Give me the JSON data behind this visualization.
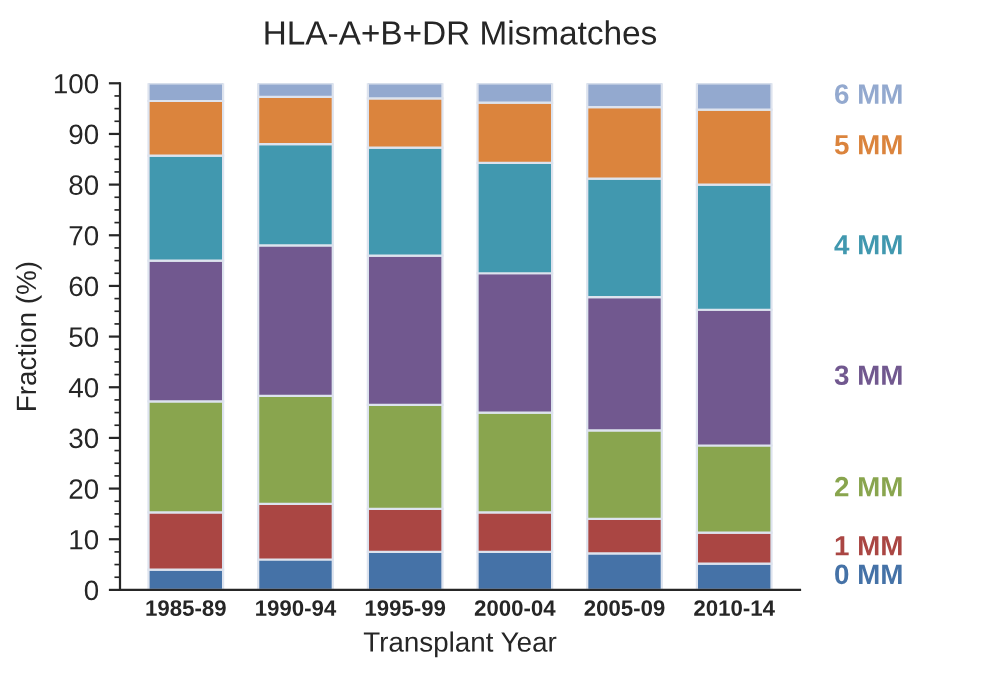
{
  "chart_data": {
    "type": "bar",
    "title": "HLA-A+B+DR Mismatches",
    "xlabel": "Transplant Year",
    "ylabel": "Fraction (%)",
    "categories": [
      "1985-89",
      "1990-94",
      "1995-99",
      "2000-04",
      "2005-09",
      "2010-14"
    ],
    "stacked": true,
    "legend": "right",
    "grid": false,
    "ylim": [
      0,
      100
    ],
    "yticks": [
      0,
      10,
      20,
      30,
      40,
      50,
      60,
      70,
      80,
      90,
      100
    ],
    "series": [
      {
        "name": "0 MM",
        "color": "#4572a7",
        "values": [
          4,
          6,
          7.5,
          7.5,
          7.2,
          5.2
        ]
      },
      {
        "name": "1 MM",
        "color": "#aa4643",
        "values": [
          11.3,
          11,
          8.5,
          7.8,
          6.8,
          6.1
        ]
      },
      {
        "name": "2 MM",
        "color": "#89a54e",
        "values": [
          21.9,
          21.3,
          20.5,
          19.7,
          17.5,
          17.2
        ]
      },
      {
        "name": "3 MM",
        "color": "#71588f",
        "values": [
          27.8,
          29.7,
          29.5,
          27.5,
          26.3,
          26.8
        ]
      },
      {
        "name": "4 MM",
        "color": "#4198af",
        "values": [
          20.7,
          20,
          21.3,
          21.8,
          23.4,
          24.7
        ]
      },
      {
        "name": "5 MM",
        "color": "#db843d",
        "values": [
          10.8,
          9.3,
          9.7,
          11.9,
          14.1,
          14.8
        ]
      },
      {
        "name": "6 MM",
        "color": "#93a9cf",
        "values": [
          3.5,
          2.7,
          3,
          3.8,
          4.7,
          5.2
        ]
      }
    ]
  }
}
